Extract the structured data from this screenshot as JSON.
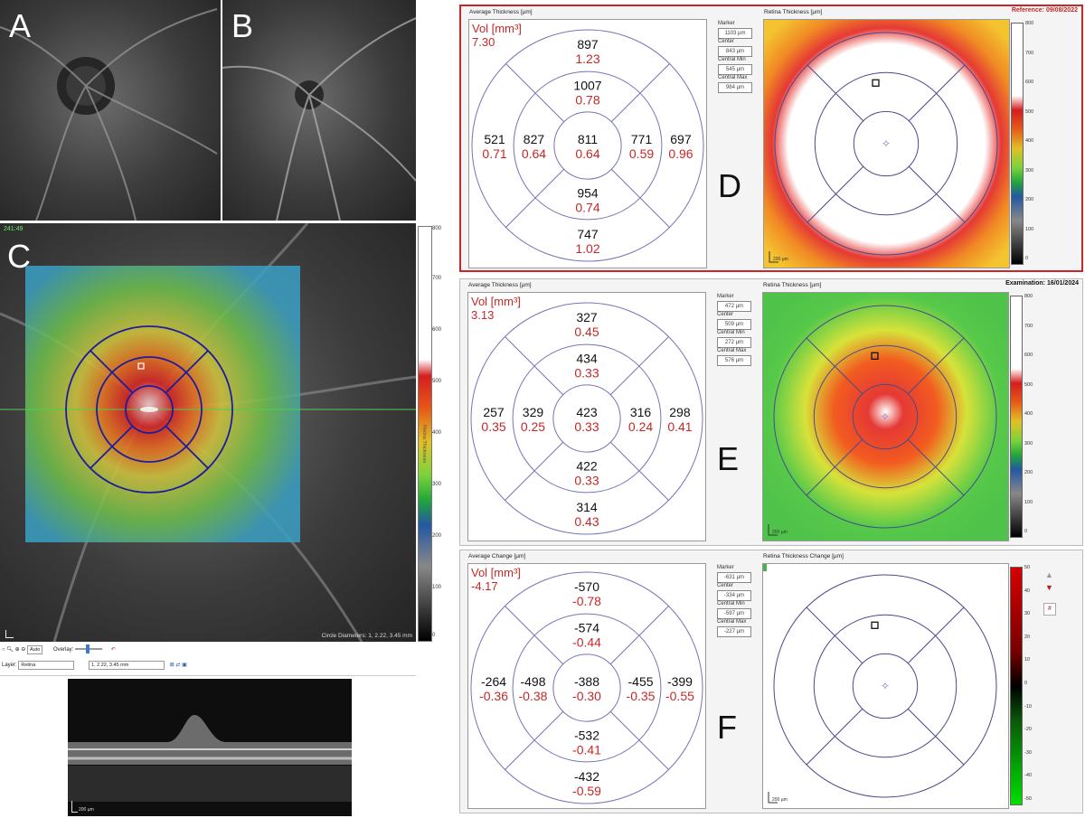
{
  "panels": {
    "A": "A",
    "B": "B",
    "C": "C",
    "D": "D",
    "E": "E",
    "F": "F"
  },
  "colors": {
    "bubble_line": "#7474b8",
    "value_black": "#111111",
    "value_red": "#c62828",
    "reference_red": "#c62828"
  },
  "c_panel": {
    "timestamp": "241:49",
    "circle_diameters": "Circle Diameters: 1, 2.22, 3.45 mm",
    "scale_label": "200 µm",
    "colorbar_ticks": [
      "800",
      "700",
      "600",
      "500",
      "400",
      "300",
      "200",
      "100",
      "0"
    ],
    "colorbar_title": "Retina Thickness"
  },
  "controls": {
    "zoom_value": "Auto",
    "overlay_label": "Overlay:",
    "layer_label": "Layer:",
    "layer_value": "Retina",
    "grid_value": "1, 2.22, 3.45 mm"
  },
  "bscan": {
    "scale_label": "200 µm"
  },
  "reports": [
    {
      "id": "D",
      "avg_title": "Average Thickness [µm]",
      "map_title": "Retina Thickness [µm]",
      "header_right": "Reference: 09/08/2022",
      "vol_label": "Vol [mm³]",
      "vol_value": "7.30",
      "sectors": {
        "outer_top": [
          "897",
          "1.23"
        ],
        "inner_top": [
          "1007",
          "0.78"
        ],
        "outer_left": [
          "521",
          "0.71"
        ],
        "inner_left": [
          "827",
          "0.64"
        ],
        "center": [
          "811",
          "0.64"
        ],
        "inner_right": [
          "771",
          "0.59"
        ],
        "outer_right": [
          "697",
          "0.96"
        ],
        "inner_bottom": [
          "954",
          "0.74"
        ],
        "outer_bottom": [
          "747",
          "1.02"
        ]
      },
      "measures": [
        {
          "label": "Marker",
          "value": "1103 µm"
        },
        {
          "label": "Center",
          "value": "843 µm"
        },
        {
          "label": "Central Min",
          "value": "545 µm"
        },
        {
          "label": "Central Max",
          "value": "984 µm"
        }
      ],
      "map_type": "thickness_ref",
      "scale_ticks": [
        "800",
        "700",
        "600",
        "500",
        "400",
        "300",
        "200",
        "100",
        "0"
      ],
      "scale_label": "200 µm"
    },
    {
      "id": "E",
      "avg_title": "Average Thickness [µm]",
      "map_title": "Retina Thickness [µm]",
      "header_right": "Examination: 16/01/2024",
      "vol_label": "Vol [mm³]",
      "vol_value": "3.13",
      "sectors": {
        "outer_top": [
          "327",
          "0.45"
        ],
        "inner_top": [
          "434",
          "0.33"
        ],
        "outer_left": [
          "257",
          "0.35"
        ],
        "inner_left": [
          "329",
          "0.25"
        ],
        "center": [
          "423",
          "0.33"
        ],
        "inner_right": [
          "316",
          "0.24"
        ],
        "outer_right": [
          "298",
          "0.41"
        ],
        "inner_bottom": [
          "422",
          "0.33"
        ],
        "outer_bottom": [
          "314",
          "0.43"
        ]
      },
      "measures": [
        {
          "label": "Marker",
          "value": "472 µm"
        },
        {
          "label": "Center",
          "value": "509 µm"
        },
        {
          "label": "Central Min",
          "value": "272 µm"
        },
        {
          "label": "Central Max",
          "value": "576 µm"
        }
      ],
      "map_type": "thickness_exam",
      "scale_ticks": [
        "800",
        "700",
        "600",
        "500",
        "400",
        "300",
        "200",
        "100",
        "0"
      ],
      "scale_label": "200 µm"
    },
    {
      "id": "F",
      "avg_title": "Average Change [µm]",
      "map_title": "Retina Thickness Change [µm]",
      "header_right": "",
      "vol_label": "Vol [mm³]",
      "vol_value": "-4.17",
      "sectors": {
        "outer_top": [
          "-570",
          "-0.78"
        ],
        "inner_top": [
          "-574",
          "-0.44"
        ],
        "outer_left": [
          "-264",
          "-0.36"
        ],
        "inner_left": [
          "-498",
          "-0.38"
        ],
        "center": [
          "-388",
          "-0.30"
        ],
        "inner_right": [
          "-455",
          "-0.35"
        ],
        "outer_right": [
          "-399",
          "-0.55"
        ],
        "inner_bottom": [
          "-532",
          "-0.41"
        ],
        "outer_bottom": [
          "-432",
          "-0.59"
        ]
      },
      "measures": [
        {
          "label": "Marker",
          "value": "-631 µm"
        },
        {
          "label": "Center",
          "value": "-334 µm"
        },
        {
          "label": "Central Min",
          "value": "-597 µm"
        },
        {
          "label": "Central Max",
          "value": "-227 µm"
        }
      ],
      "map_type": "change",
      "scale_ticks": [
        "50",
        "40",
        "30",
        "20",
        "10",
        "0",
        "-10",
        "-20",
        "-30",
        "-40",
        "-50"
      ],
      "scale_label": "200 µm",
      "button_label": "#"
    }
  ]
}
